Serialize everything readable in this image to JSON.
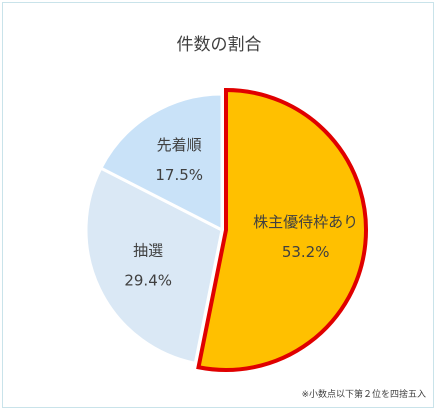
{
  "chart_data": {
    "type": "pie",
    "title": "件数の割合",
    "note": "※小数点以下第２位を四捨五入",
    "slices": [
      {
        "label": "株主優待枠あり",
        "value": 53.2,
        "value_label": "53.2%",
        "color": "#FFC000",
        "stroke": "#E00000",
        "highlighted": true
      },
      {
        "label": "抽選",
        "value": 29.4,
        "value_label": "29.4%",
        "color": "#DAE8F5",
        "stroke": "#FFFFFF",
        "highlighted": false
      },
      {
        "label": "先着順",
        "value": 17.5,
        "value_label": "17.5%",
        "color": "#C9E2F8",
        "stroke": "#FFFFFF",
        "highlighted": false
      }
    ]
  }
}
